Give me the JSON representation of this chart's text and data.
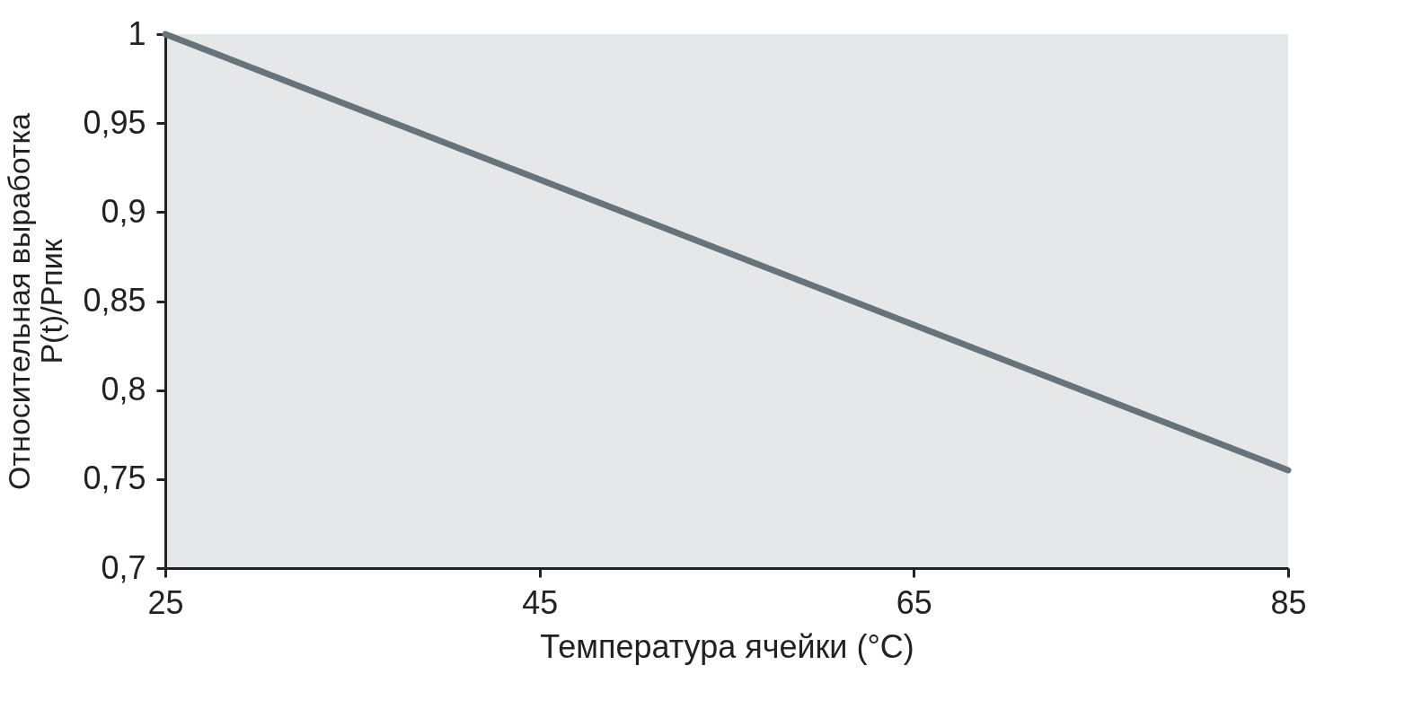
{
  "chart_data": {
    "type": "line",
    "xlabel": "Температура ячейки (°C)",
    "ylabel": [
      "Относительная выработка",
      "P(t)/Pпик"
    ],
    "x": [
      25,
      85
    ],
    "series": [
      {
        "color": "#67737b",
        "values": [
          1.0,
          0.755
        ]
      }
    ],
    "xlim": [
      25,
      85
    ],
    "xticks": [
      25,
      45,
      65,
      85
    ],
    "ylim": [
      0.7,
      1.0
    ],
    "yticks": [
      {
        "value": 0.7,
        "label": "0,7"
      },
      {
        "value": 0.75,
        "label": "0,75"
      },
      {
        "value": 0.8,
        "label": "0,8"
      },
      {
        "value": 0.85,
        "label": "0,85"
      },
      {
        "value": 0.9,
        "label": "0,9"
      },
      {
        "value": 0.95,
        "label": "0,95"
      },
      {
        "value": 1.0,
        "label": "1"
      }
    ],
    "grid": false,
    "legend": false,
    "line_style": "solid"
  }
}
